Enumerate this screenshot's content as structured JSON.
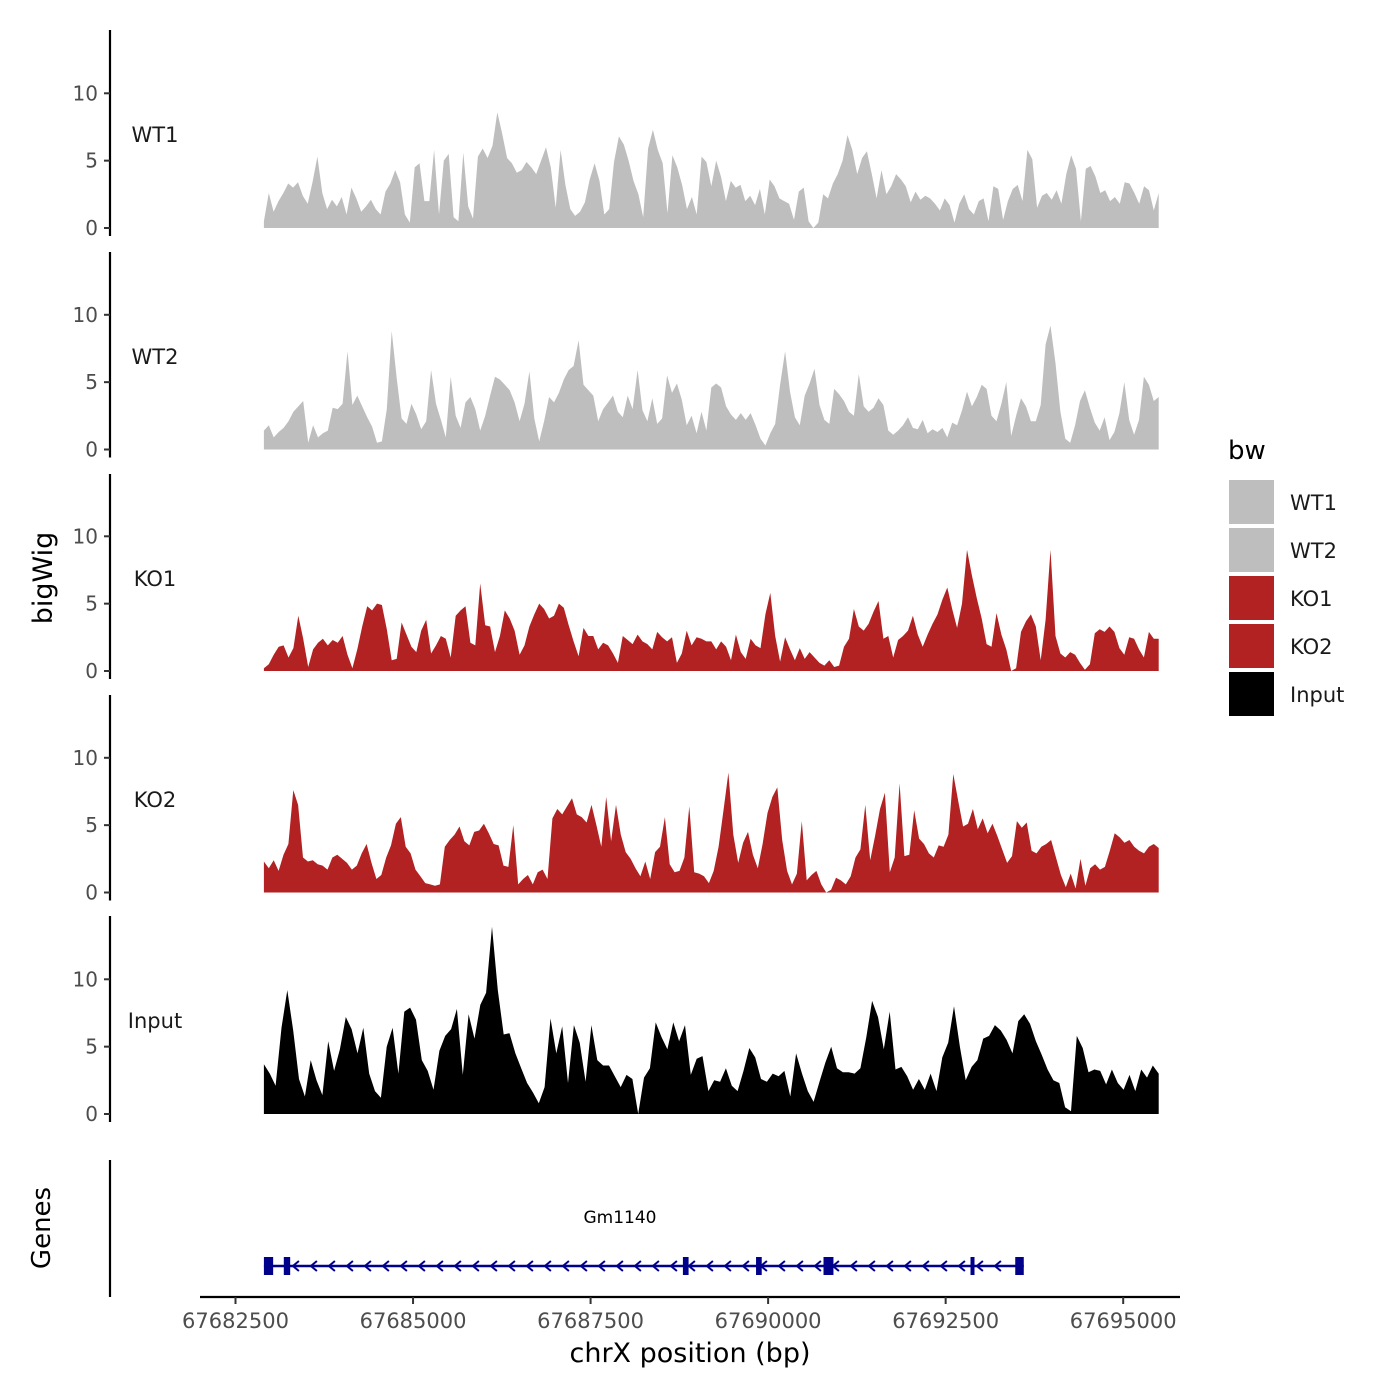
{
  "chart_data": {
    "type": "area",
    "title": "",
    "ylabel": "bigWig",
    "xlabel": "chrX position (bp)",
    "ylim": [
      0,
      14.5
    ],
    "y_ticks": [
      0,
      5,
      10
    ],
    "y_tick_labels": [
      "0",
      "5",
      "10"
    ],
    "xlim": [
      67682000,
      67695800
    ],
    "x_ticks": [
      67682500,
      67685000,
      67687500,
      67690000,
      67692500,
      67695000
    ],
    "x_tick_labels": [
      "67682500",
      "67685000",
      "67687500",
      "67690000",
      "67692500",
      "67695000"
    ],
    "legend": {
      "title": "bw",
      "position": "right",
      "entries": [
        {
          "label": "WT1",
          "color": "#bebebe"
        },
        {
          "label": "WT2",
          "color": "#bebebe"
        },
        {
          "label": "KO1",
          "color": "#b22222"
        },
        {
          "label": "KO2",
          "color": "#b22222"
        },
        {
          "label": "Input",
          "color": "#000000"
        }
      ]
    },
    "series": [
      {
        "name": "WT1",
        "color": "#bebebe",
        "x_start": 67682900,
        "x_end": 67695500,
        "values": [
          0.5,
          2.6,
          1.2,
          2.0,
          2.6,
          3.3,
          3.0,
          3.4,
          2.4,
          1.8,
          3.4,
          5.3,
          2.6,
          1.4,
          2.1,
          1.6,
          2.3,
          1.0,
          3.0,
          2.2,
          1.2,
          1.6,
          2.1,
          1.4,
          1.0,
          2.7,
          3.3,
          4.3,
          3.4,
          1.0,
          0.4,
          4.5,
          4.8,
          2.0,
          2.0,
          5.8,
          1.0,
          5.0,
          5.5,
          0.8,
          0.5,
          5.6,
          1.6,
          0.7,
          5.3,
          5.9,
          5.2,
          6.1,
          8.6,
          7.0,
          5.2,
          4.8,
          4.1,
          4.3,
          4.9,
          4.5,
          4.0,
          5.0,
          6.0,
          4.5,
          1.5,
          5.8,
          3.2,
          1.4,
          0.9,
          1.2,
          1.9,
          3.6,
          4.8,
          3.5,
          1.0,
          1.4,
          4.9,
          6.8,
          6.2,
          5.0,
          3.5,
          2.5,
          0.8,
          5.9,
          7.3,
          5.8,
          4.8,
          1.1,
          5.4,
          4.5,
          3.2,
          1.4,
          2.3,
          1.0,
          5.3,
          4.9,
          3.1,
          5.0,
          3.8,
          2.0,
          3.5,
          3.0,
          3.2,
          2.0,
          2.4,
          1.7,
          2.9,
          1.0,
          3.6,
          3.1,
          2.2,
          2.0,
          1.8,
          0.6,
          2.7,
          3.0,
          0.5,
          0.0,
          0.4,
          2.5,
          2.2,
          3.3,
          4.0,
          5.0,
          6.9,
          5.8,
          4.0,
          5.2,
          5.7,
          4.0,
          2.2,
          4.3,
          2.5,
          3.1,
          4.0,
          3.6,
          3.1,
          1.9,
          2.7,
          2.1,
          2.4,
          2.2,
          1.8,
          1.3,
          2.2,
          1.7,
          0.4,
          1.8,
          2.5,
          1.4,
          1.0,
          2.0,
          2.2,
          0.5,
          3.1,
          2.9,
          0.6,
          2.0,
          2.9,
          3.2,
          2.0,
          5.8,
          5.1,
          1.5,
          2.4,
          2.6,
          2.1,
          2.8,
          1.8,
          4.0,
          5.4,
          4.4,
          0.5,
          4.4,
          4.6,
          3.8,
          2.6,
          2.8,
          2.0,
          2.3,
          1.8,
          3.4,
          3.3,
          2.6,
          1.8,
          3.1,
          2.8,
          1.3,
          2.6
        ]
      },
      {
        "name": "WT2",
        "color": "#bebebe",
        "x_start": 67682900,
        "x_end": 67695500,
        "values": [
          1.4,
          1.8,
          0.9,
          1.3,
          1.6,
          2.1,
          2.8,
          3.2,
          3.6,
          0.5,
          1.8,
          0.9,
          1.2,
          1.4,
          3.1,
          3.0,
          3.4,
          7.3,
          3.3,
          4.0,
          3.2,
          2.4,
          1.7,
          0.5,
          0.6,
          3.0,
          8.8,
          5.3,
          2.3,
          1.9,
          3.4,
          2.6,
          1.5,
          2.1,
          5.9,
          3.4,
          2.2,
          0.9,
          5.4,
          2.5,
          1.6,
          3.5,
          3.9,
          3.0,
          1.4,
          2.5,
          4.0,
          5.4,
          5.2,
          4.8,
          4.4,
          3.5,
          2.1,
          3.4,
          5.8,
          2.3,
          0.6,
          2.1,
          3.9,
          3.5,
          4.2,
          5.2,
          5.9,
          6.2,
          8.1,
          4.8,
          4.4,
          4.0,
          2.1,
          3.0,
          3.5,
          4.0,
          2.8,
          2.4,
          4.0,
          3.0,
          5.9,
          2.9,
          2.1,
          3.8,
          1.9,
          2.3,
          5.5,
          4.2,
          4.9,
          3.7,
          1.8,
          2.5,
          1.2,
          2.8,
          1.4,
          4.6,
          4.9,
          4.6,
          3.2,
          2.6,
          2.2,
          2.7,
          2.2,
          2.7,
          1.8,
          0.8,
          0.3,
          1.2,
          1.9,
          4.8,
          7.3,
          4.3,
          2.4,
          1.8,
          4.0,
          4.9,
          6.0,
          3.3,
          2.2,
          1.9,
          4.5,
          4.1,
          3.6,
          2.8,
          2.5,
          5.6,
          3.2,
          2.8,
          3.1,
          3.8,
          3.3,
          1.4,
          1.1,
          1.4,
          1.8,
          2.4,
          1.6,
          1.5,
          2.2,
          1.2,
          1.5,
          1.3,
          1.6,
          0.9,
          2.0,
          1.8,
          2.9,
          4.3,
          3.2,
          3.9,
          4.8,
          4.5,
          2.5,
          2.1,
          3.4,
          5.0,
          1.0,
          2.5,
          3.8,
          3.2,
          2.1,
          2.1,
          3.3,
          7.8,
          9.2,
          6.4,
          2.8,
          0.8,
          0.5,
          1.8,
          3.6,
          4.4,
          3.1,
          2.0,
          1.4,
          2.4,
          0.7,
          1.3,
          2.7,
          5.0,
          2.2,
          1.1,
          2.2,
          5.4,
          4.8,
          3.6,
          3.9
        ]
      },
      {
        "name": "KO1",
        "color": "#b22222",
        "x_start": 67682900,
        "x_end": 67695500,
        "values": [
          0.2,
          0.5,
          1.2,
          1.8,
          1.9,
          1.0,
          1.7,
          4.1,
          2.4,
          0.3,
          1.6,
          2.1,
          2.4,
          1.9,
          2.3,
          2.1,
          2.6,
          1.2,
          0.2,
          1.6,
          3.3,
          4.8,
          4.5,
          5.0,
          4.9,
          3.1,
          0.8,
          0.9,
          3.6,
          2.7,
          1.8,
          1.4,
          3.0,
          3.8,
          1.3,
          1.9,
          2.6,
          2.4,
          1.0,
          4.1,
          4.5,
          4.8,
          2.1,
          1.9,
          6.5,
          3.4,
          3.3,
          1.4,
          2.6,
          4.5,
          3.9,
          3.0,
          1.2,
          1.9,
          3.3,
          4.2,
          5.0,
          4.6,
          3.9,
          4.1,
          5.0,
          4.7,
          3.4,
          2.2,
          1.1,
          3.2,
          2.6,
          2.6,
          1.6,
          2.1,
          1.9,
          1.3,
          0.6,
          2.6,
          2.3,
          2.0,
          2.7,
          2.2,
          2.0,
          1.6,
          2.9,
          2.5,
          2.2,
          2.5,
          0.6,
          1.3,
          3.0,
          1.9,
          2.5,
          2.4,
          2.2,
          2.2,
          1.6,
          2.2,
          1.8,
          0.8,
          2.7,
          1.4,
          0.9,
          2.4,
          1.9,
          1.7,
          4.2,
          5.8,
          2.6,
          0.7,
          2.5,
          1.6,
          0.8,
          1.7,
          0.9,
          1.4,
          1.0,
          0.6,
          0.4,
          0.8,
          0.3,
          0.4,
          1.8,
          2.4,
          4.6,
          3.3,
          3.0,
          3.5,
          4.4,
          5.2,
          2.4,
          2.6,
          1.0,
          2.3,
          2.6,
          3.0,
          4.1,
          2.7,
          1.8,
          2.7,
          3.5,
          4.2,
          5.3,
          6.2,
          4.6,
          3.2,
          5.0,
          9.0,
          7.1,
          5.4,
          3.9,
          2.0,
          1.8,
          4.3,
          2.7,
          1.6,
          0.0,
          0.2,
          2.9,
          3.7,
          4.2,
          3.3,
          0.8,
          3.8,
          9.0,
          2.6,
          1.3,
          1.0,
          1.4,
          1.2,
          0.6,
          0.1,
          0.5,
          2.8,
          3.1,
          2.9,
          3.3,
          2.9,
          1.7,
          1.2,
          2.5,
          2.4,
          1.6,
          1.0,
          2.9,
          2.4,
          2.4
        ]
      },
      {
        "name": "KO2",
        "color": "#b22222",
        "x_start": 67682900,
        "x_end": 67695500,
        "values": [
          2.3,
          1.8,
          2.4,
          1.6,
          2.8,
          3.6,
          7.6,
          6.5,
          2.6,
          2.3,
          2.4,
          2.1,
          2.0,
          1.7,
          2.6,
          2.8,
          2.5,
          2.2,
          1.7,
          2.0,
          2.9,
          3.6,
          2.2,
          1.0,
          1.3,
          2.6,
          3.5,
          5.1,
          5.6,
          3.4,
          2.9,
          1.7,
          1.2,
          0.7,
          0.6,
          0.5,
          0.6,
          3.4,
          3.9,
          4.3,
          4.9,
          3.8,
          3.5,
          4.5,
          4.6,
          5.1,
          4.4,
          3.6,
          3.5,
          2.0,
          1.9,
          5.0,
          0.6,
          1.0,
          1.3,
          0.6,
          1.5,
          1.7,
          1.0,
          5.5,
          6.2,
          5.8,
          6.4,
          7.0,
          5.8,
          5.6,
          5.2,
          6.5,
          5.0,
          3.4,
          7.1,
          3.8,
          6.5,
          4.3,
          3.0,
          2.5,
          1.8,
          1.2,
          2.3,
          1.0,
          3.0,
          3.4,
          5.6,
          2.1,
          1.5,
          1.6,
          2.6,
          6.4,
          1.5,
          1.4,
          1.2,
          0.7,
          1.6,
          3.4,
          6.1,
          8.9,
          4.3,
          2.2,
          3.7,
          4.5,
          2.8,
          1.8,
          3.6,
          5.9,
          7.1,
          7.8,
          3.9,
          1.6,
          0.6,
          1.4,
          5.3,
          0.9,
          1.3,
          1.6,
          0.6,
          0.0,
          0.2,
          1.1,
          0.9,
          0.6,
          1.2,
          2.6,
          3.2,
          6.5,
          2.4,
          4.2,
          6.2,
          7.4,
          1.5,
          2.6,
          8.1,
          2.7,
          2.8,
          6.1,
          4.0,
          3.6,
          2.9,
          2.6,
          3.5,
          3.4,
          4.3,
          8.8,
          6.8,
          4.9,
          5.1,
          6.2,
          4.7,
          5.5,
          4.4,
          5.1,
          4.2,
          3.2,
          2.2,
          2.7,
          5.3,
          4.8,
          5.2,
          3.1,
          2.9,
          3.4,
          3.6,
          3.9,
          2.6,
          1.3,
          0.4,
          1.4,
          0.3,
          2.5,
          0.5,
          1.8,
          2.1,
          1.7,
          1.9,
          3.1,
          4.4,
          4.1,
          3.7,
          3.9,
          3.4,
          3.1,
          2.9,
          3.4,
          3.6,
          3.3
        ]
      },
      {
        "name": "Input",
        "color": "#000000",
        "x_start": 67682900,
        "x_end": 67695500,
        "values": [
          3.7,
          3.0,
          2.1,
          6.4,
          9.2,
          6.2,
          2.6,
          1.3,
          4.0,
          2.5,
          1.4,
          5.4,
          3.2,
          4.8,
          7.2,
          6.3,
          4.5,
          6.4,
          3.0,
          1.7,
          1.2,
          5.0,
          6.4,
          3.0,
          7.6,
          7.9,
          7.0,
          4.0,
          3.2,
          1.8,
          4.7,
          5.8,
          6.3,
          7.8,
          2.9,
          7.4,
          5.6,
          8.1,
          9.0,
          13.9,
          9.2,
          5.9,
          6.0,
          4.5,
          3.4,
          2.3,
          1.6,
          0.8,
          2.0,
          7.1,
          4.5,
          6.5,
          2.3,
          6.6,
          5.3,
          2.4,
          6.6,
          4.0,
          3.6,
          3.6,
          2.8,
          2.0,
          2.9,
          2.6,
          0.0,
          2.7,
          3.4,
          6.8,
          5.7,
          4.8,
          6.8,
          5.4,
          6.6,
          2.9,
          4.1,
          4.3,
          1.7,
          2.5,
          2.4,
          3.4,
          2.1,
          1.7,
          3.2,
          4.9,
          4.2,
          2.6,
          2.4,
          3.0,
          2.8,
          3.2,
          1.3,
          4.5,
          3.0,
          1.7,
          0.9,
          2.4,
          3.8,
          5.0,
          3.4,
          3.1,
          3.1,
          3.0,
          3.4,
          5.7,
          8.4,
          7.2,
          4.8,
          7.6,
          3.3,
          3.5,
          2.8,
          1.8,
          2.6,
          1.8,
          3.0,
          1.7,
          4.2,
          5.3,
          8.0,
          5.0,
          2.5,
          3.5,
          4.0,
          5.6,
          5.8,
          6.6,
          6.2,
          5.5,
          4.5,
          6.9,
          7.4,
          6.7,
          5.4,
          4.4,
          3.3,
          2.5,
          2.3,
          0.5,
          0.2,
          5.8,
          4.9,
          3.1,
          3.3,
          3.2,
          2.2,
          3.3,
          2.3,
          1.8,
          2.9,
          1.7,
          3.3,
          2.7,
          3.6,
          3.0
        ]
      }
    ],
    "gene_track": {
      "label": "Genes",
      "gene_name": "Gm1140",
      "color": "#00008b",
      "start": 67682900,
      "end": 67693600,
      "strand": "-",
      "exons": [
        [
          67682900,
          67683030
        ],
        [
          67683180,
          67683270
        ],
        [
          67688800,
          67688880
        ],
        [
          67689830,
          67689910
        ],
        [
          67690780,
          67690920
        ],
        [
          67692850,
          67692890
        ],
        [
          67693480,
          67693600
        ]
      ]
    }
  }
}
